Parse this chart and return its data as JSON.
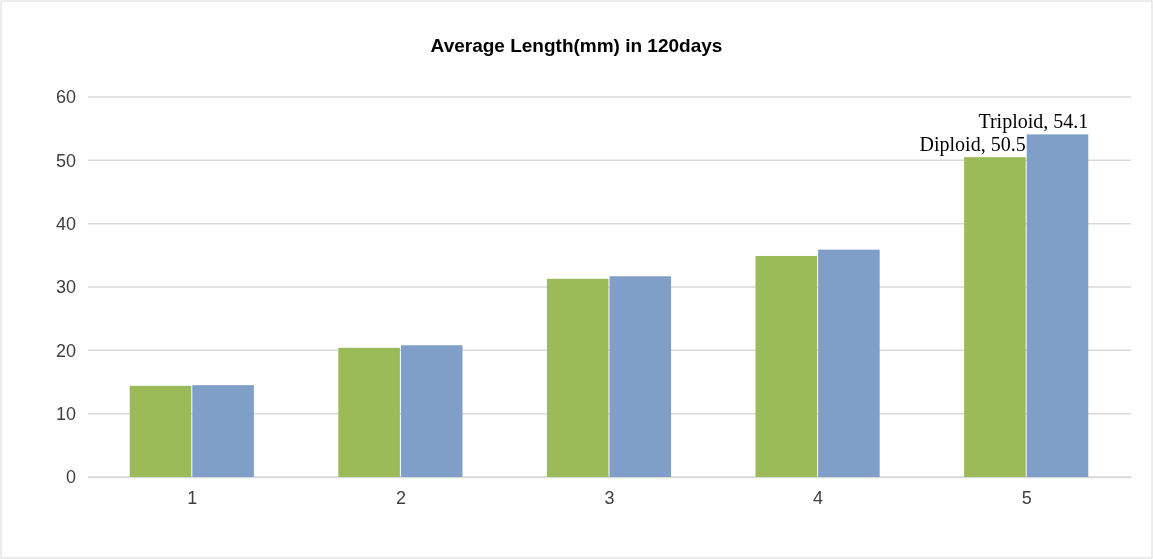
{
  "chart_data": {
    "type": "bar",
    "title": "Average Length(mm) in 120days",
    "categories": [
      "1",
      "2",
      "3",
      "4",
      "5"
    ],
    "series": [
      {
        "color": "#9bbb59",
        "values": [
          14.4,
          20.4,
          31.3,
          34.9,
          50.5
        ],
        "value_labels": [
          null,
          null,
          null,
          null,
          "Diploid, 50.5"
        ]
      },
      {
        "color": "#7f9fc8",
        "values": [
          14.5,
          20.8,
          31.7,
          35.9,
          54.1
        ],
        "value_labels": [
          null,
          null,
          null,
          null,
          "Triploid, 54.1"
        ]
      }
    ],
    "ylim": [
      0,
      60
    ],
    "yticks": [
      0,
      10,
      20,
      30,
      40,
      50,
      60
    ],
    "grid": "y",
    "legend": false
  }
}
